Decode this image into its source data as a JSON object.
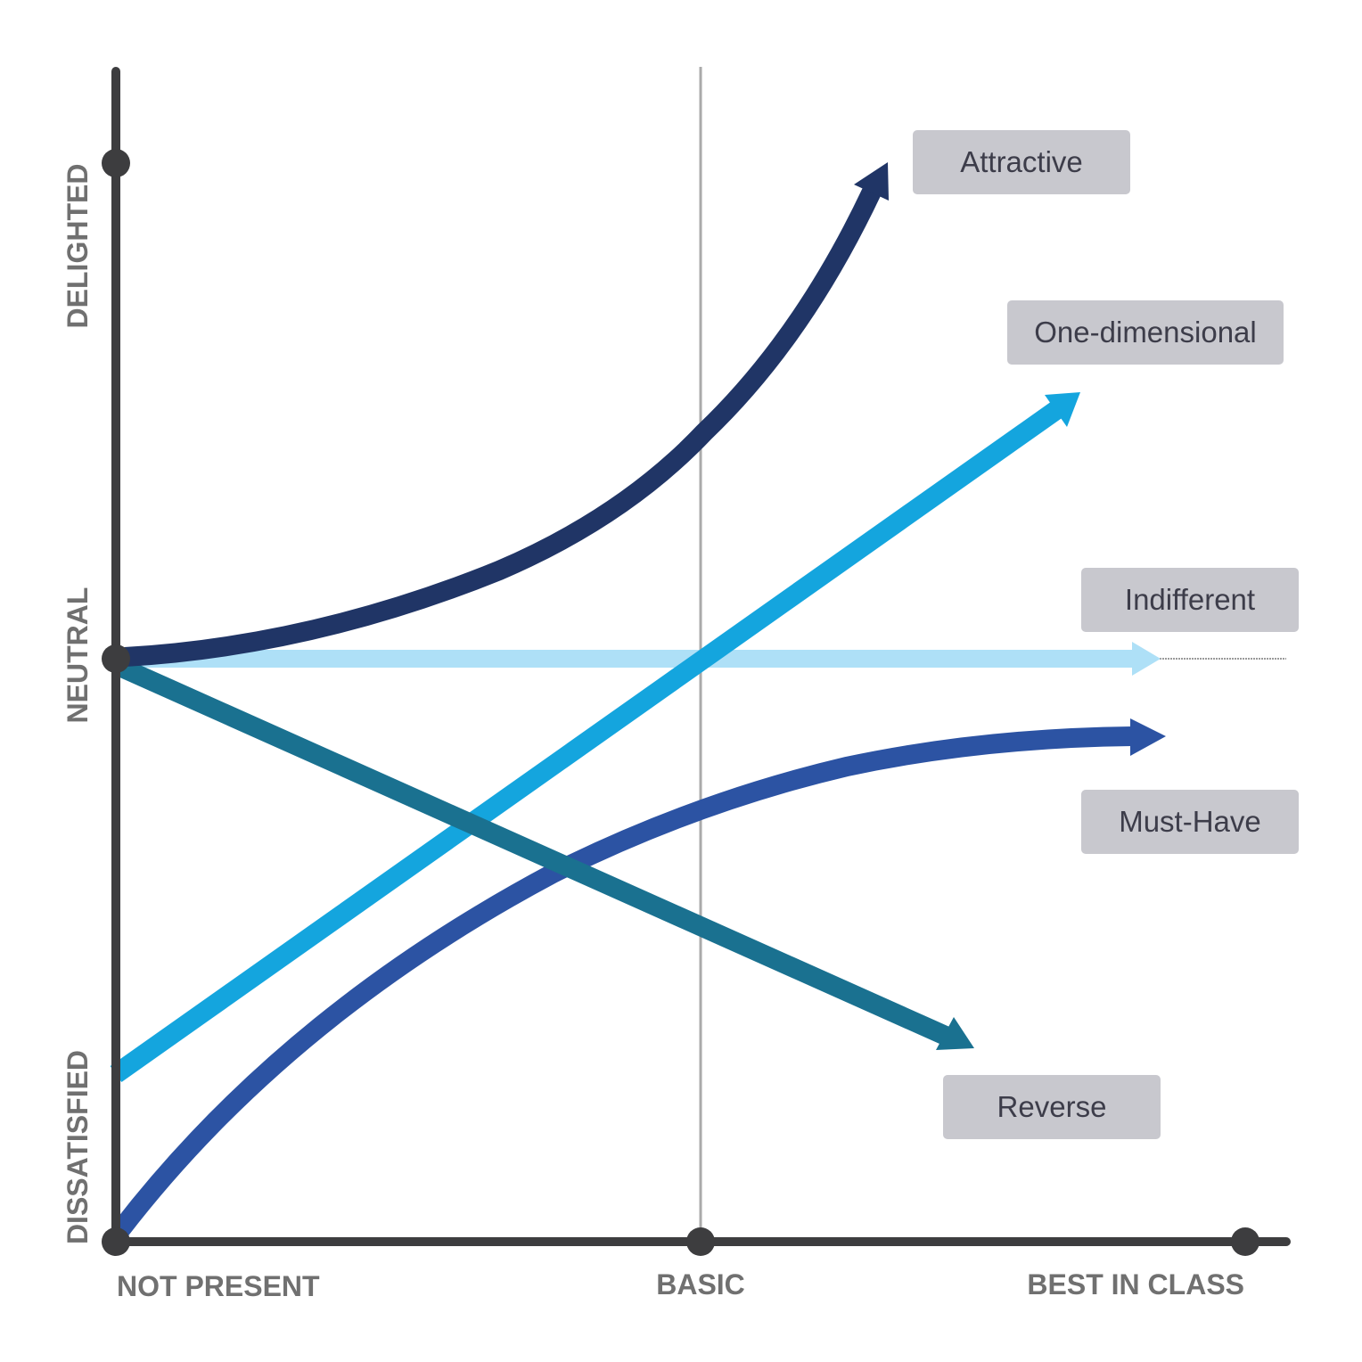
{
  "axes": {
    "y_labels": {
      "top": "DELIGHTED",
      "middle": "NEUTRAL",
      "bottom": "DISSATISFIED"
    },
    "x_labels": {
      "left": "NOT PRESENT",
      "middle": "BASIC",
      "right": "BEST IN CLASS"
    }
  },
  "curves": [
    {
      "id": "attractive",
      "label": "Attractive",
      "color": "#203566"
    },
    {
      "id": "one-dimensional",
      "label": "One-dimensional",
      "color": "#14a5de"
    },
    {
      "id": "indifferent",
      "label": "Indifferent",
      "color": "#aee0f7"
    },
    {
      "id": "must-have",
      "label": "Must-Have",
      "color": "#2c53a3"
    },
    {
      "id": "reverse",
      "label": "Reverse",
      "color": "#1a7190"
    }
  ],
  "colors": {
    "axis": "#3d3d3f",
    "gridline": "#aaaaaa",
    "label_box": "#c8c8ce"
  }
}
